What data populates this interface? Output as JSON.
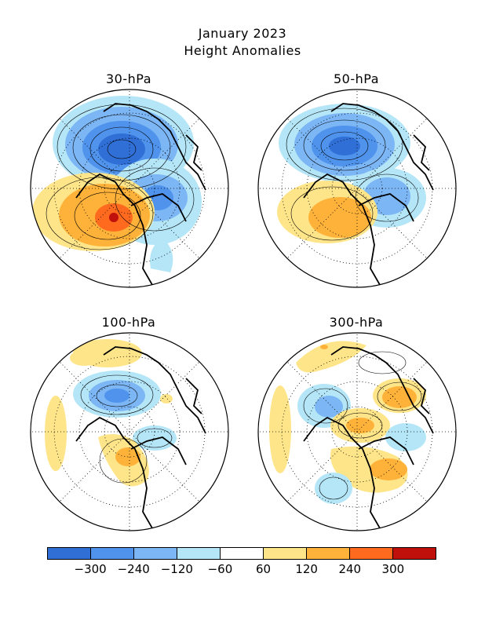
{
  "title": {
    "line1": "January 2023",
    "line2": "Height Anomalies"
  },
  "panels": [
    {
      "label": "30-hPa"
    },
    {
      "label": "50-hPa"
    },
    {
      "label": "100-hPa"
    },
    {
      "label": "300-hPa"
    }
  ],
  "colorbar": {
    "colors": [
      "#2f6fd6",
      "#4f93ec",
      "#7cb6f5",
      "#b4e6f7",
      "#ffffff",
      "#ffe58a",
      "#ffb23a",
      "#ff6a1e",
      "#c0100c"
    ],
    "labels": [
      "−300",
      "−240",
      "−120",
      "−60",
      "60",
      "120",
      "240",
      "300"
    ]
  }
}
